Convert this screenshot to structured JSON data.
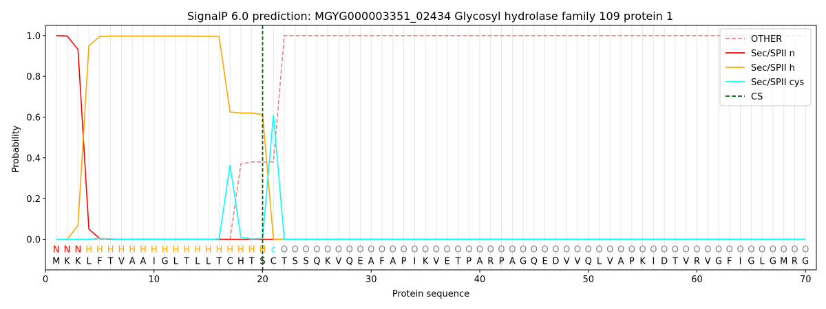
{
  "chart_data": {
    "type": "line",
    "title": "SignalP 6.0 prediction: MGYG000003351_02434 Glycosyl hydrolase family 109 protein 1",
    "xlabel": "Protein sequence",
    "ylabel": "Probability",
    "xlim": [
      0,
      71
    ],
    "ylim": [
      -0.15,
      1.05
    ],
    "xticks": [
      0,
      10,
      20,
      30,
      40,
      50,
      60,
      70
    ],
    "yticks": [
      0.0,
      0.2,
      0.4,
      0.6,
      0.8,
      1.0
    ],
    "ytick_labels": [
      "0.0",
      "0.2",
      "0.4",
      "0.6",
      "0.8",
      "1.0"
    ],
    "legend_position": "top-right",
    "sequence": [
      "M",
      "K",
      "K",
      "L",
      "F",
      "T",
      "V",
      "A",
      "A",
      "I",
      "G",
      "L",
      "T",
      "L",
      "L",
      "T",
      "C",
      "H",
      "T",
      "S",
      "C",
      "T",
      "S",
      "S",
      "Q",
      "K",
      "V",
      "Q",
      "E",
      "A",
      "F",
      "A",
      "P",
      "I",
      "K",
      "V",
      "E",
      "T",
      "P",
      "A",
      "R",
      "P",
      "A",
      "G",
      "Q",
      "E",
      "D",
      "V",
      "V",
      "Q",
      "L",
      "V",
      "A",
      "P",
      "K",
      "I",
      "D",
      "T",
      "V",
      "R",
      "V",
      "G",
      "F",
      "I",
      "G",
      "L",
      "G",
      "M",
      "R",
      "G"
    ],
    "region_labels": [
      "N",
      "N",
      "N",
      "H",
      "H",
      "H",
      "H",
      "H",
      "H",
      "H",
      "H",
      "H",
      "H",
      "H",
      "H",
      "H",
      "H",
      "H",
      "H",
      "H",
      "c",
      "O",
      "O",
      "O",
      "O",
      "O",
      "O",
      "O",
      "O",
      "O",
      "O",
      "O",
      "O",
      "O",
      "O",
      "O",
      "O",
      "O",
      "O",
      "O",
      "O",
      "O",
      "O",
      "O",
      "O",
      "O",
      "O",
      "O",
      "O",
      "O",
      "O",
      "O",
      "O",
      "O",
      "O",
      "O",
      "O",
      "O",
      "O",
      "O",
      "O",
      "O",
      "O",
      "O",
      "O",
      "O",
      "O",
      "O",
      "O",
      "O"
    ],
    "region_colors": {
      "N": "#ff0000",
      "H": "#ffa500",
      "c": "#00ffff",
      "O": "#808080"
    },
    "cs_position": 20,
    "cs_label": "CS",
    "series": [
      {
        "name": "OTHER",
        "color": "#f08080",
        "dash": true,
        "values": [
          0,
          0,
          0,
          0,
          0,
          0,
          0,
          0,
          0,
          0,
          0,
          0,
          0,
          0,
          0,
          0,
          0,
          0.37,
          0.38,
          0.38,
          0.38,
          1,
          1,
          1,
          1,
          1,
          1,
          1,
          1,
          1,
          1,
          1,
          1,
          1,
          1,
          1,
          1,
          1,
          1,
          1,
          1,
          1,
          1,
          1,
          1,
          1,
          1,
          1,
          1,
          1,
          1,
          1,
          1,
          1,
          1,
          1,
          1,
          1,
          1,
          1,
          1,
          1,
          1,
          1,
          1,
          1,
          1,
          1,
          1,
          1
        ]
      },
      {
        "name": "Sec/SPII n",
        "color": "#ff0000",
        "dash": false,
        "values": [
          1.0,
          0.998,
          0.932,
          0.05,
          0.004,
          0,
          0,
          0,
          0,
          0,
          0,
          0,
          0,
          0,
          0,
          0,
          0,
          0,
          0,
          0,
          0,
          0,
          0,
          0,
          0,
          0,
          0,
          0,
          0,
          0,
          0,
          0,
          0,
          0,
          0,
          0,
          0,
          0,
          0,
          0,
          0,
          0,
          0,
          0,
          0,
          0,
          0,
          0,
          0,
          0,
          0,
          0,
          0,
          0,
          0,
          0,
          0,
          0,
          0,
          0,
          0,
          0,
          0,
          0,
          0,
          0,
          0,
          0,
          0,
          0
        ]
      },
      {
        "name": "Sec/SPII h",
        "color": "#ffa500",
        "dash": false,
        "values": [
          0,
          0,
          0.068,
          0.95,
          0.995,
          0.998,
          0.998,
          0.998,
          0.998,
          0.998,
          0.998,
          0.998,
          0.998,
          0.997,
          0.997,
          0.995,
          0.625,
          0.62,
          0.62,
          0.612,
          0,
          0,
          0,
          0,
          0,
          0,
          0,
          0,
          0,
          0,
          0,
          0,
          0,
          0,
          0,
          0,
          0,
          0,
          0,
          0,
          0,
          0,
          0,
          0,
          0,
          0,
          0,
          0,
          0,
          0,
          0,
          0,
          0,
          0,
          0,
          0,
          0,
          0,
          0,
          0,
          0,
          0,
          0,
          0,
          0,
          0,
          0,
          0,
          0,
          0
        ]
      },
      {
        "name": "Sec/SPII cys",
        "color": "#00ffff",
        "dash": false,
        "values": [
          0,
          0,
          0,
          0,
          0.004,
          0.002,
          0,
          0,
          0,
          0,
          0,
          0,
          0,
          0,
          0,
          0.002,
          0.365,
          0.01,
          0.002,
          0.004,
          0.61,
          0,
          0,
          0,
          0,
          0,
          0,
          0,
          0,
          0,
          0,
          0,
          0,
          0,
          0,
          0,
          0,
          0,
          0,
          0,
          0,
          0,
          0,
          0,
          0,
          0,
          0,
          0,
          0,
          0,
          0,
          0,
          0,
          0,
          0,
          0,
          0,
          0,
          0,
          0,
          0,
          0,
          0,
          0,
          0,
          0,
          0,
          0,
          0,
          0
        ]
      }
    ]
  }
}
